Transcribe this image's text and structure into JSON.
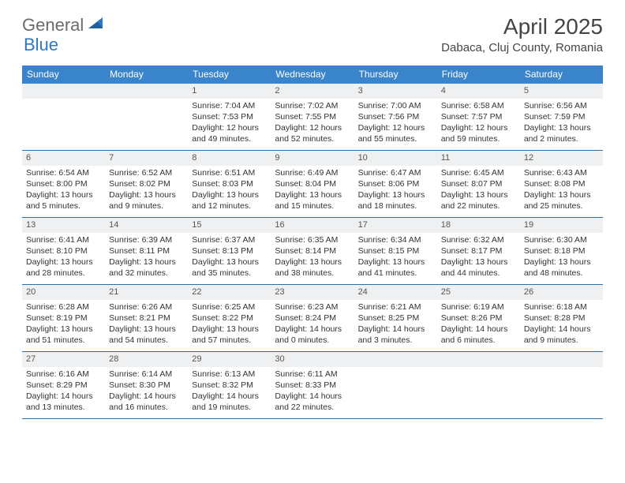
{
  "logo": {
    "part1": "General",
    "part2": "Blue"
  },
  "title": "April 2025",
  "location": "Dabaca, Cluj County, Romania",
  "colors": {
    "header_bg": "#3a84cc",
    "header_text": "#ffffff",
    "daynum_bg": "#eef0f2",
    "rule": "#2f6fa8",
    "logo_gray": "#6b6b6b",
    "logo_blue": "#2f78c3",
    "text": "#333333"
  },
  "day_names": [
    "Sunday",
    "Monday",
    "Tuesday",
    "Wednesday",
    "Thursday",
    "Friday",
    "Saturday"
  ],
  "weeks": [
    [
      {
        "n": "",
        "empty": true
      },
      {
        "n": "",
        "empty": true
      },
      {
        "n": "1",
        "sunrise": "Sunrise: 7:04 AM",
        "sunset": "Sunset: 7:53 PM",
        "day1": "Daylight: 12 hours",
        "day2": "and 49 minutes."
      },
      {
        "n": "2",
        "sunrise": "Sunrise: 7:02 AM",
        "sunset": "Sunset: 7:55 PM",
        "day1": "Daylight: 12 hours",
        "day2": "and 52 minutes."
      },
      {
        "n": "3",
        "sunrise": "Sunrise: 7:00 AM",
        "sunset": "Sunset: 7:56 PM",
        "day1": "Daylight: 12 hours",
        "day2": "and 55 minutes."
      },
      {
        "n": "4",
        "sunrise": "Sunrise: 6:58 AM",
        "sunset": "Sunset: 7:57 PM",
        "day1": "Daylight: 12 hours",
        "day2": "and 59 minutes."
      },
      {
        "n": "5",
        "sunrise": "Sunrise: 6:56 AM",
        "sunset": "Sunset: 7:59 PM",
        "day1": "Daylight: 13 hours",
        "day2": "and 2 minutes."
      }
    ],
    [
      {
        "n": "6",
        "sunrise": "Sunrise: 6:54 AM",
        "sunset": "Sunset: 8:00 PM",
        "day1": "Daylight: 13 hours",
        "day2": "and 5 minutes."
      },
      {
        "n": "7",
        "sunrise": "Sunrise: 6:52 AM",
        "sunset": "Sunset: 8:02 PM",
        "day1": "Daylight: 13 hours",
        "day2": "and 9 minutes."
      },
      {
        "n": "8",
        "sunrise": "Sunrise: 6:51 AM",
        "sunset": "Sunset: 8:03 PM",
        "day1": "Daylight: 13 hours",
        "day2": "and 12 minutes."
      },
      {
        "n": "9",
        "sunrise": "Sunrise: 6:49 AM",
        "sunset": "Sunset: 8:04 PM",
        "day1": "Daylight: 13 hours",
        "day2": "and 15 minutes."
      },
      {
        "n": "10",
        "sunrise": "Sunrise: 6:47 AM",
        "sunset": "Sunset: 8:06 PM",
        "day1": "Daylight: 13 hours",
        "day2": "and 18 minutes."
      },
      {
        "n": "11",
        "sunrise": "Sunrise: 6:45 AM",
        "sunset": "Sunset: 8:07 PM",
        "day1": "Daylight: 13 hours",
        "day2": "and 22 minutes."
      },
      {
        "n": "12",
        "sunrise": "Sunrise: 6:43 AM",
        "sunset": "Sunset: 8:08 PM",
        "day1": "Daylight: 13 hours",
        "day2": "and 25 minutes."
      }
    ],
    [
      {
        "n": "13",
        "sunrise": "Sunrise: 6:41 AM",
        "sunset": "Sunset: 8:10 PM",
        "day1": "Daylight: 13 hours",
        "day2": "and 28 minutes."
      },
      {
        "n": "14",
        "sunrise": "Sunrise: 6:39 AM",
        "sunset": "Sunset: 8:11 PM",
        "day1": "Daylight: 13 hours",
        "day2": "and 32 minutes."
      },
      {
        "n": "15",
        "sunrise": "Sunrise: 6:37 AM",
        "sunset": "Sunset: 8:13 PM",
        "day1": "Daylight: 13 hours",
        "day2": "and 35 minutes."
      },
      {
        "n": "16",
        "sunrise": "Sunrise: 6:35 AM",
        "sunset": "Sunset: 8:14 PM",
        "day1": "Daylight: 13 hours",
        "day2": "and 38 minutes."
      },
      {
        "n": "17",
        "sunrise": "Sunrise: 6:34 AM",
        "sunset": "Sunset: 8:15 PM",
        "day1": "Daylight: 13 hours",
        "day2": "and 41 minutes."
      },
      {
        "n": "18",
        "sunrise": "Sunrise: 6:32 AM",
        "sunset": "Sunset: 8:17 PM",
        "day1": "Daylight: 13 hours",
        "day2": "and 44 minutes."
      },
      {
        "n": "19",
        "sunrise": "Sunrise: 6:30 AM",
        "sunset": "Sunset: 8:18 PM",
        "day1": "Daylight: 13 hours",
        "day2": "and 48 minutes."
      }
    ],
    [
      {
        "n": "20",
        "sunrise": "Sunrise: 6:28 AM",
        "sunset": "Sunset: 8:19 PM",
        "day1": "Daylight: 13 hours",
        "day2": "and 51 minutes."
      },
      {
        "n": "21",
        "sunrise": "Sunrise: 6:26 AM",
        "sunset": "Sunset: 8:21 PM",
        "day1": "Daylight: 13 hours",
        "day2": "and 54 minutes."
      },
      {
        "n": "22",
        "sunrise": "Sunrise: 6:25 AM",
        "sunset": "Sunset: 8:22 PM",
        "day1": "Daylight: 13 hours",
        "day2": "and 57 minutes."
      },
      {
        "n": "23",
        "sunrise": "Sunrise: 6:23 AM",
        "sunset": "Sunset: 8:24 PM",
        "day1": "Daylight: 14 hours",
        "day2": "and 0 minutes."
      },
      {
        "n": "24",
        "sunrise": "Sunrise: 6:21 AM",
        "sunset": "Sunset: 8:25 PM",
        "day1": "Daylight: 14 hours",
        "day2": "and 3 minutes."
      },
      {
        "n": "25",
        "sunrise": "Sunrise: 6:19 AM",
        "sunset": "Sunset: 8:26 PM",
        "day1": "Daylight: 14 hours",
        "day2": "and 6 minutes."
      },
      {
        "n": "26",
        "sunrise": "Sunrise: 6:18 AM",
        "sunset": "Sunset: 8:28 PM",
        "day1": "Daylight: 14 hours",
        "day2": "and 9 minutes."
      }
    ],
    [
      {
        "n": "27",
        "sunrise": "Sunrise: 6:16 AM",
        "sunset": "Sunset: 8:29 PM",
        "day1": "Daylight: 14 hours",
        "day2": "and 13 minutes."
      },
      {
        "n": "28",
        "sunrise": "Sunrise: 6:14 AM",
        "sunset": "Sunset: 8:30 PM",
        "day1": "Daylight: 14 hours",
        "day2": "and 16 minutes."
      },
      {
        "n": "29",
        "sunrise": "Sunrise: 6:13 AM",
        "sunset": "Sunset: 8:32 PM",
        "day1": "Daylight: 14 hours",
        "day2": "and 19 minutes."
      },
      {
        "n": "30",
        "sunrise": "Sunrise: 6:11 AM",
        "sunset": "Sunset: 8:33 PM",
        "day1": "Daylight: 14 hours",
        "day2": "and 22 minutes."
      },
      {
        "n": "",
        "empty": true
      },
      {
        "n": "",
        "empty": true
      },
      {
        "n": "",
        "empty": true
      }
    ]
  ]
}
